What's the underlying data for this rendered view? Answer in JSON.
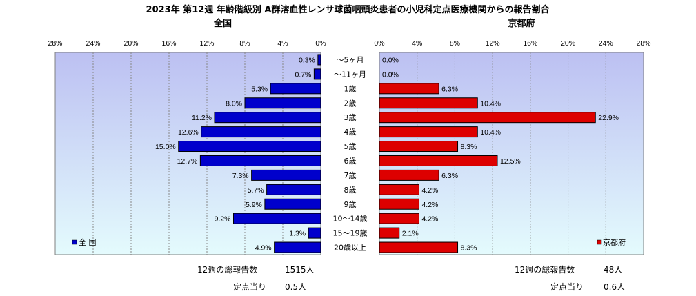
{
  "title": "2023年 第12週  年齢階級別 A群溶血性レンサ球菌咽頭炎患者の小児科定点医療機関からの報告割合",
  "colors": {
    "left_bar": "#0000cc",
    "right_bar": "#dd0000",
    "bar_edge": "#000000",
    "plot_bg_top": "#bcc0f2",
    "plot_bg_bottom": "#e4fbfd",
    "grid": "#888888"
  },
  "chart_data": [
    {
      "type": "bar",
      "orientation": "horizontal",
      "direction": "right-to-left",
      "title": "全国",
      "legend": "全 国",
      "legend_position": "bottom-left",
      "xlim": [
        0,
        28
      ],
      "ticks": [
        "28%",
        "24%",
        "20%",
        "16%",
        "12%",
        "8%",
        "4%",
        "0%"
      ],
      "categories": [
        "～5ヶ月",
        "～11ヶ月",
        "1歳",
        "2歳",
        "3歳",
        "4歳",
        "5歳",
        "6歳",
        "7歳",
        "8歳",
        "9歳",
        "10～14歳",
        "15～19歳",
        "20歳以上"
      ],
      "values": [
        0.3,
        0.7,
        5.3,
        8.0,
        11.2,
        12.6,
        15.0,
        12.7,
        7.3,
        5.7,
        5.9,
        9.2,
        1.3,
        4.9
      ],
      "labels": [
        "0.3%",
        "0.7%",
        "5.3%",
        "8.0%",
        "11.2%",
        "12.6%",
        "15.0%",
        "12.7%",
        "7.3%",
        "5.7%",
        "5.9%",
        "9.2%",
        "1.3%",
        "4.9%"
      ],
      "grid": true
    },
    {
      "type": "bar",
      "orientation": "horizontal",
      "direction": "left-to-right",
      "title": "京都府",
      "legend": "京都府",
      "legend_position": "bottom-right",
      "xlim": [
        0,
        28
      ],
      "ticks": [
        "0%",
        "4%",
        "8%",
        "12%",
        "16%",
        "20%",
        "24%",
        "28%"
      ],
      "categories": [
        "～5ヶ月",
        "～11ヶ月",
        "1歳",
        "2歳",
        "3歳",
        "4歳",
        "5歳",
        "6歳",
        "7歳",
        "8歳",
        "9歳",
        "10～14歳",
        "15～19歳",
        "20歳以上"
      ],
      "values": [
        0.0,
        0.0,
        6.3,
        10.4,
        22.9,
        10.4,
        8.3,
        12.5,
        6.3,
        4.2,
        4.2,
        4.2,
        2.1,
        8.3
      ],
      "labels": [
        "0.0%",
        "0.0%",
        "6.3%",
        "10.4%",
        "22.9%",
        "10.4%",
        "8.3%",
        "12.5%",
        "6.3%",
        "4.2%",
        "4.2%",
        "4.2%",
        "2.1%",
        "8.3%"
      ],
      "grid": true
    }
  ],
  "summary": {
    "left": {
      "total_label": "12週の総報告数",
      "total_value": "1515人",
      "per_label": "定点当り",
      "per_value": "0.5人"
    },
    "right": {
      "total_label": "12週の総報告数",
      "total_value": "48人",
      "per_label": "定点当り",
      "per_value": "0.6人"
    }
  }
}
